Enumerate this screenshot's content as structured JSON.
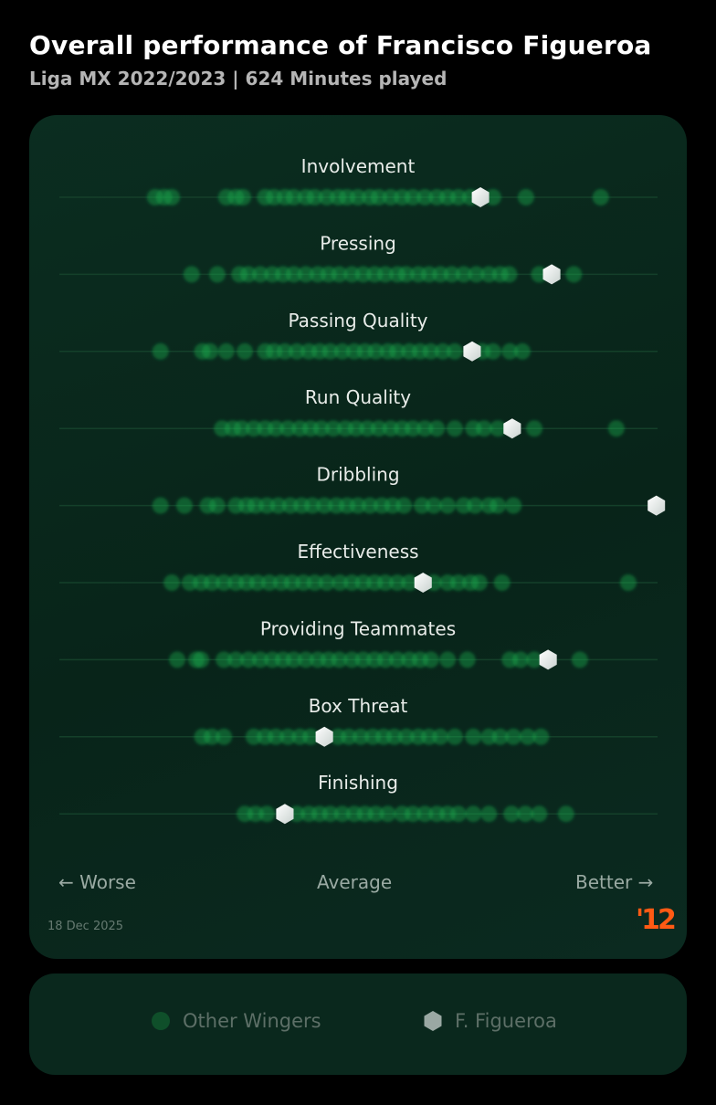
{
  "header": {
    "title": "Overall performance of Francisco Figueroa",
    "subtitle": "Liga MX 2022/2023 | 624 Minutes played"
  },
  "chart_data": {
    "type": "scatter",
    "subtype": "strip-plot",
    "xlim": [
      0,
      100
    ],
    "axis": {
      "left_label": "← Worse",
      "center_label": "Average",
      "right_label": "Better →"
    },
    "grid": false,
    "legend_position": "bottom",
    "colors": {
      "others": "#1fae4c",
      "player": "#e6ecea",
      "background": "#082419",
      "brand": "#ff5a14"
    },
    "series": [
      {
        "name": "Other Wingers",
        "marker": "circle"
      },
      {
        "name": "F. Figueroa",
        "marker": "hexagon"
      }
    ],
    "metrics": [
      {
        "label": "Involvement",
        "player": 70.4,
        "others": [
          16,
          17.5,
          18.8,
          27.9,
          29.5,
          30.7,
          34.4,
          35.9,
          37.7,
          39.2,
          41.2,
          42.7,
          44.7,
          46.6,
          48.1,
          49.9,
          51.9,
          53.4,
          55.4,
          57.3,
          59.1,
          61.1,
          63.1,
          64.9,
          66.7,
          68.7,
          72.5,
          78,
          90.5
        ]
      },
      {
        "label": "Pressing",
        "player": 82.3,
        "others": [
          22.1,
          26.4,
          30.1,
          31.6,
          33.6,
          35.6,
          37.4,
          39.2,
          41.2,
          43.2,
          45,
          46.8,
          48.9,
          50.8,
          52.7,
          54.5,
          56.5,
          58,
          60,
          61.8,
          63.7,
          65.6,
          67.6,
          69.7,
          71.8,
          73.7,
          75.2,
          80.2,
          86
        ]
      },
      {
        "label": "Passing Quality",
        "player": 69.0,
        "others": [
          16.9,
          23.9,
          25.2,
          27.9,
          31,
          34.4,
          35.9,
          37.7,
          39.7,
          41.7,
          43.5,
          45.3,
          47.3,
          49.3,
          51.1,
          52.9,
          54.9,
          56.5,
          58.5,
          60.3,
          62.1,
          64.1,
          66.1,
          70.7,
          72.5,
          75.3,
          77.4
        ]
      },
      {
        "label": "Run Quality",
        "player": 75.7,
        "others": [
          27.2,
          29,
          30.5,
          32.5,
          34.4,
          36.2,
          38.2,
          40.2,
          42,
          43.8,
          45.8,
          47.8,
          49.6,
          51.5,
          53.4,
          55.4,
          57.3,
          59.1,
          61.1,
          63.1,
          66.1,
          69.2,
          71,
          73.3,
          79.4,
          93.1
        ]
      },
      {
        "label": "Dribbling",
        "player": 99.8,
        "others": [
          16.9,
          20.9,
          24.8,
          26.4,
          29.5,
          31.3,
          32.8,
          34.7,
          36.6,
          38.6,
          40.5,
          42.3,
          44.3,
          46.3,
          48.1,
          49.9,
          51.9,
          53.9,
          55.7,
          57.6,
          60.6,
          62.6,
          64.9,
          67.6,
          69.5,
          71.8,
          73.3,
          75.9
        ]
      },
      {
        "label": "Effectiveness",
        "player": 60.8,
        "others": [
          18.8,
          21.8,
          23.7,
          25.5,
          27.5,
          29.5,
          31.3,
          33.1,
          35.1,
          37.1,
          38.9,
          40.8,
          42.7,
          44.7,
          46.9,
          48.9,
          50.8,
          52.7,
          54.5,
          56.5,
          58.5,
          62.6,
          64.9,
          66.7,
          68.7,
          70.2,
          74,
          95.1
        ]
      },
      {
        "label": "Providing Teammates",
        "player": 81.7,
        "others": [
          19.7,
          22.9,
          23.7,
          27.5,
          29.5,
          31.6,
          33.6,
          35.6,
          37.4,
          39.2,
          41.2,
          43.2,
          45,
          46.8,
          48.9,
          50.8,
          52.7,
          54.5,
          56.5,
          58.5,
          60.3,
          62.1,
          64.9,
          68.2,
          75.3,
          77.1,
          79.4,
          87
        ]
      },
      {
        "label": "Box Threat",
        "player": 44.3,
        "others": [
          23.9,
          25.5,
          27.5,
          32.5,
          34.4,
          36.2,
          38.2,
          40.2,
          42,
          46.6,
          48.4,
          50.4,
          52.4,
          54.2,
          56,
          58,
          60,
          61.8,
          63.7,
          66.1,
          69.2,
          71.8,
          73.7,
          75.9,
          78.3,
          80.5
        ]
      },
      {
        "label": "Finishing",
        "player": 37.7,
        "others": [
          31,
          32.8,
          34.7,
          39.7,
          41.7,
          43.5,
          45.3,
          47.3,
          49.3,
          51.1,
          52.9,
          54.9,
          57.3,
          59.1,
          61.1,
          63.1,
          64.9,
          66.7,
          69.2,
          71.8,
          75.6,
          77.9,
          80.2,
          84.7
        ]
      }
    ]
  },
  "footer": {
    "date": "18 Dec 2025",
    "logo_text": "'12"
  },
  "legend": {
    "others_label": "Other Wingers",
    "player_label": "F. Figueroa"
  }
}
